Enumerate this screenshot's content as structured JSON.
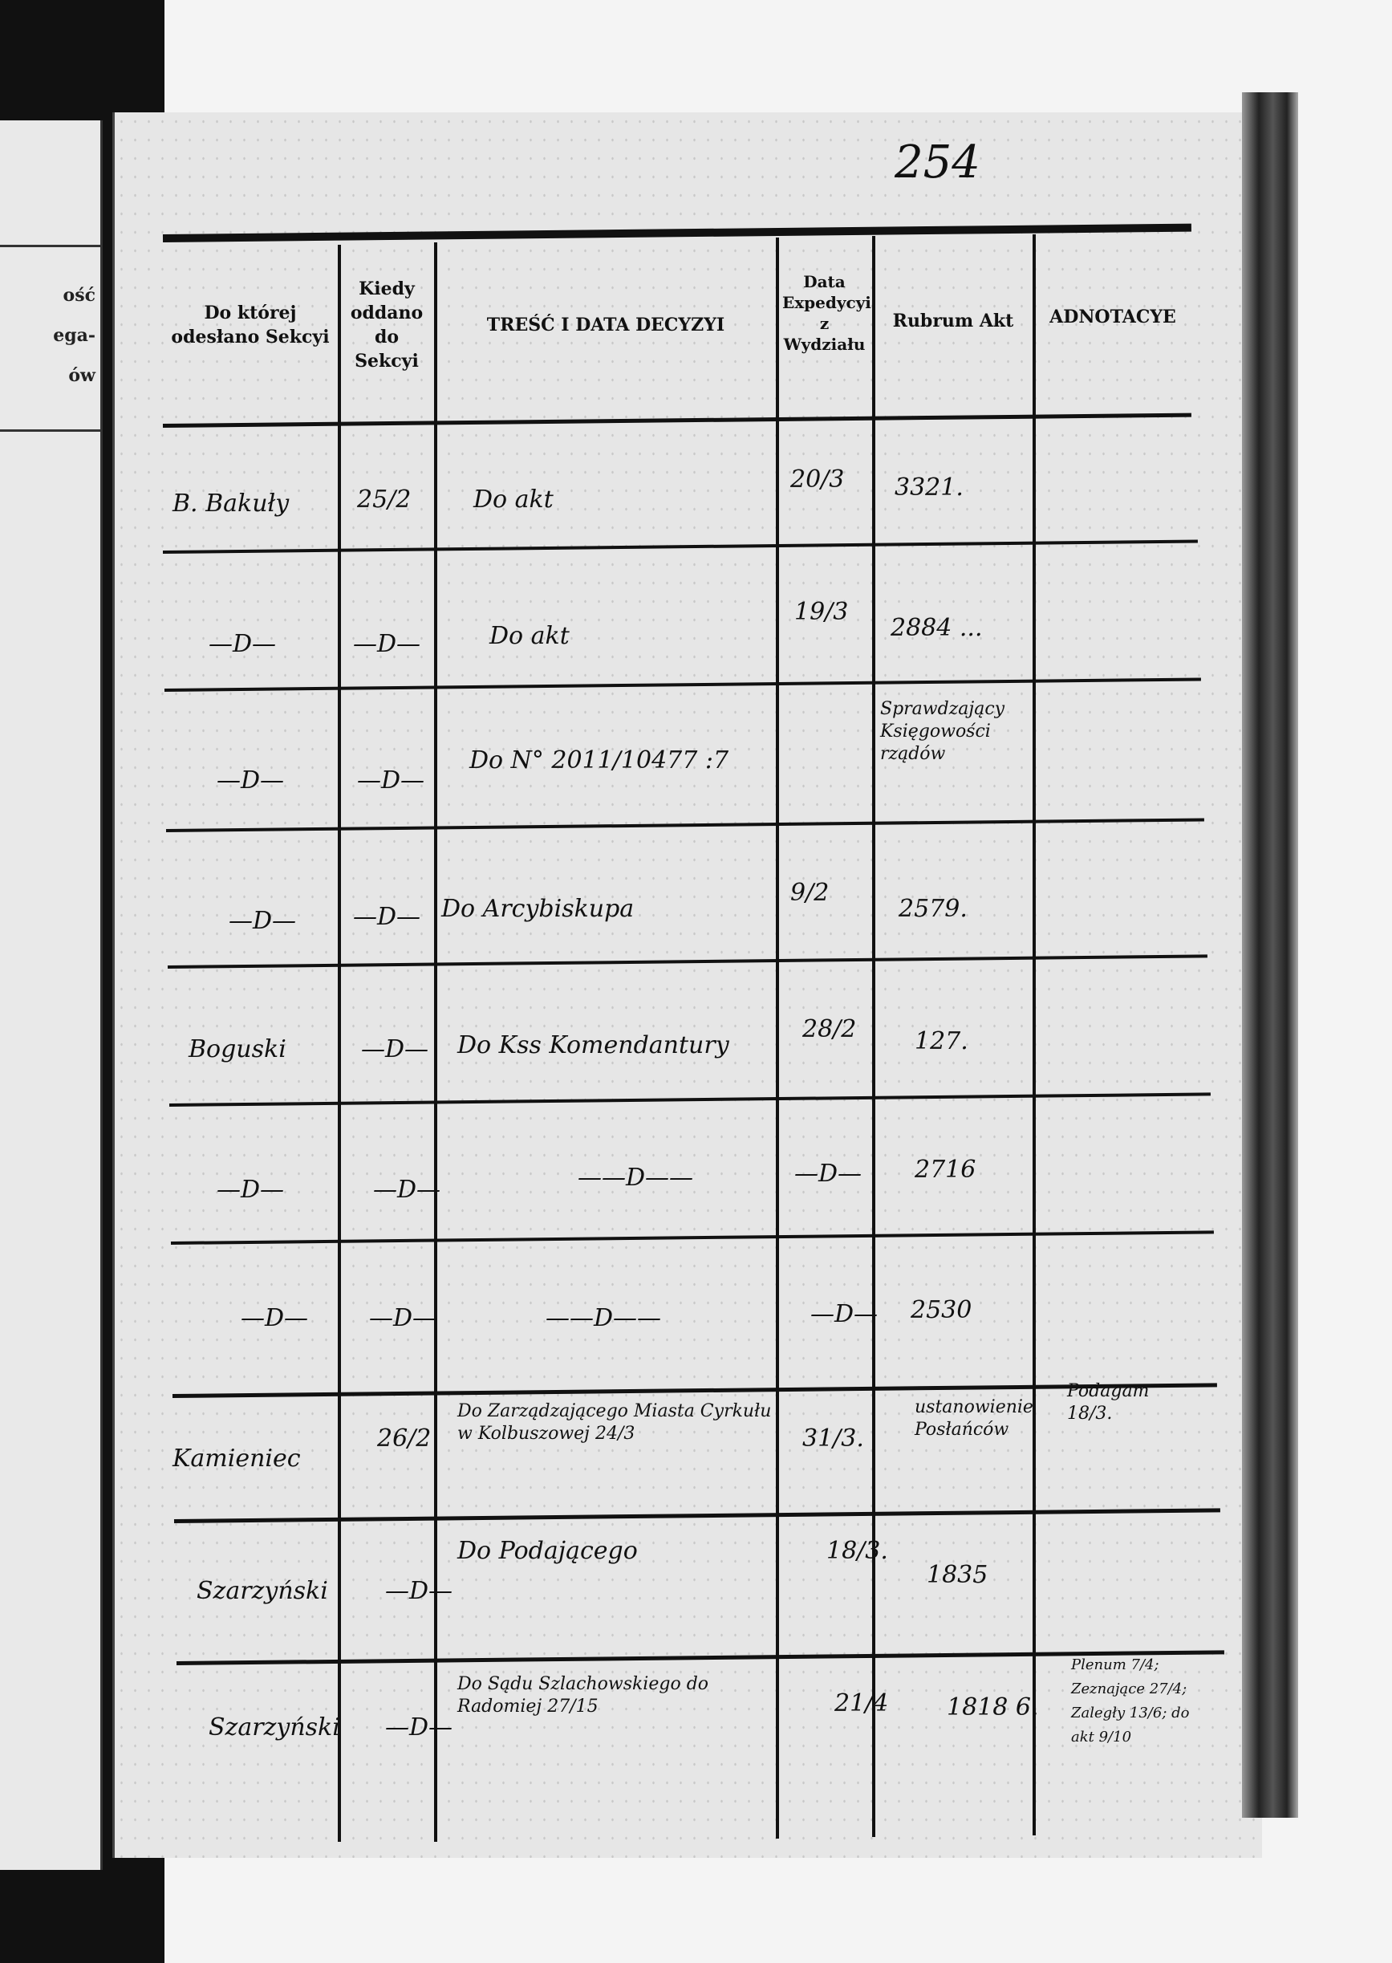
{
  "page_number": "254",
  "left_page_fragments": [
    "ość",
    "ega-",
    "ów"
  ],
  "headers": [
    "Do której odesłano Sekcyi",
    "Kiedy oddano do Sekcyi",
    "TREŚĆ I DATA DECYZYI",
    "Data Expedycyi z Wydziału",
    "Rubrum Akt",
    "ADNOTACYE"
  ],
  "rows": [
    {
      "sekcja": "B. Bakuły",
      "kiedy": "25/2",
      "tresc": "Do akt",
      "expedycja": "20/3",
      "rubrum": "3321.",
      "adnotacye": ""
    },
    {
      "sekcja": "—D—",
      "kiedy": "—D—",
      "tresc": "Do akt",
      "expedycja": "19/3",
      "rubrum": "2884 ...",
      "adnotacye": ""
    },
    {
      "sekcja": "—D—",
      "kiedy": "—D—",
      "tresc": "Do N° 2011/10477 :7",
      "expedycja": "",
      "rubrum": "Sprawdzający Księgowości rządów",
      "adnotacye": ""
    },
    {
      "sekcja": "—D—",
      "kiedy": "—D—",
      "tresc": "Do Arcybiskupa",
      "expedycja": "9/2",
      "rubrum": "2579.",
      "adnotacye": ""
    },
    {
      "sekcja": "Boguski",
      "kiedy": "—D—",
      "tresc": "Do Kss Komendantury",
      "expedycja": "28/2",
      "rubrum": "127.",
      "adnotacye": ""
    },
    {
      "sekcja": "—D—",
      "kiedy": "—D—",
      "tresc": "——D——",
      "expedycja": "—D—",
      "rubrum": "2716",
      "adnotacye": ""
    },
    {
      "sekcja": "—D—",
      "kiedy": "—D—",
      "tresc": "——D——",
      "expedycja": "—D—",
      "rubrum": "2530",
      "adnotacye": ""
    },
    {
      "sekcja": "Kamieniec",
      "kiedy": "26/2",
      "tresc": "Do Zarządzającego Miasta Cyrkułu w Kolbuszowej 24/3",
      "expedycja": "31/3.",
      "rubrum": "ustanowienie Posłańców",
      "adnotacye": "Podagam 18/3."
    },
    {
      "sekcja": "Szarzyński",
      "kiedy": "—D—",
      "tresc": "Do Podającego",
      "expedycja": "18/3.",
      "rubrum": "1835",
      "adnotacye": ""
    },
    {
      "sekcja": "Szarzyński",
      "kiedy": "—D—",
      "tresc": "Do Sądu Szlachowskiego do Radomiej 27/15",
      "expedycja": "21/4",
      "rubrum": "1818 6.",
      "adnotacye": "Plenum 7/4; Zeznające 27/4; Zaległy 13/6; do akt 9/10"
    }
  ]
}
